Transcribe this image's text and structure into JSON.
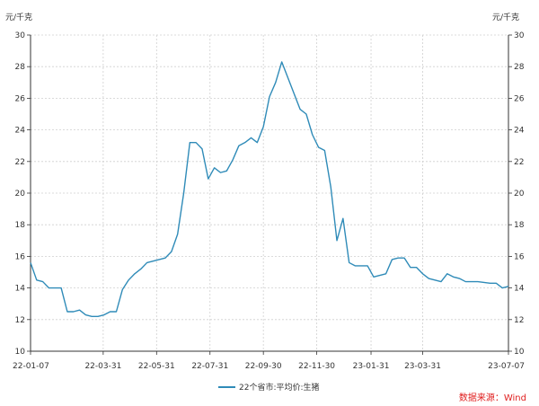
{
  "chart_data": {
    "type": "line",
    "title": "",
    "y_unit_left": "元/千克",
    "y_unit_right": "元/千克",
    "ylim": [
      10,
      30
    ],
    "yticks": [
      10,
      12,
      14,
      16,
      18,
      20,
      22,
      24,
      26,
      28,
      30
    ],
    "grid": true,
    "x_range": [
      "22-01-07",
      "23-07-07"
    ],
    "xtick_labels": [
      "22-01-07",
      "22-03-31",
      "22-05-31",
      "22-07-31",
      "22-09-30",
      "22-11-30",
      "23-01-31",
      "23-03-31",
      "23-07-07"
    ],
    "legend_position": "bottom-center",
    "series": [
      {
        "name": "22个省市:平均价:生猪",
        "color": "#2f8bb8",
        "points": [
          [
            "22-01-07",
            15.6
          ],
          [
            "22-01-14",
            14.5
          ],
          [
            "22-01-21",
            14.4
          ],
          [
            "22-01-28",
            14.0
          ],
          [
            "22-02-04",
            14.0
          ],
          [
            "22-02-11",
            14.0
          ],
          [
            "22-02-18",
            12.5
          ],
          [
            "22-02-25",
            12.5
          ],
          [
            "22-03-04",
            12.6
          ],
          [
            "22-03-11",
            12.3
          ],
          [
            "22-03-18",
            12.2
          ],
          [
            "22-03-25",
            12.2
          ],
          [
            "22-04-01",
            12.3
          ],
          [
            "22-04-08",
            12.5
          ],
          [
            "22-04-15",
            12.5
          ],
          [
            "22-04-22",
            13.9
          ],
          [
            "22-04-29",
            14.5
          ],
          [
            "22-05-06",
            14.9
          ],
          [
            "22-05-13",
            15.2
          ],
          [
            "22-05-20",
            15.6
          ],
          [
            "22-05-27",
            15.7
          ],
          [
            "22-06-03",
            15.8
          ],
          [
            "22-06-10",
            15.9
          ],
          [
            "22-06-17",
            16.3
          ],
          [
            "22-06-24",
            17.4
          ],
          [
            "22-07-01",
            20.0
          ],
          [
            "22-07-08",
            23.2
          ],
          [
            "22-07-15",
            23.2
          ],
          [
            "22-07-22",
            22.8
          ],
          [
            "22-07-29",
            20.9
          ],
          [
            "22-08-05",
            21.6
          ],
          [
            "22-08-12",
            21.3
          ],
          [
            "22-08-19",
            21.4
          ],
          [
            "22-08-26",
            22.1
          ],
          [
            "22-09-02",
            23.0
          ],
          [
            "22-09-09",
            23.2
          ],
          [
            "22-09-16",
            23.5
          ],
          [
            "22-09-23",
            23.2
          ],
          [
            "22-09-30",
            24.2
          ],
          [
            "22-10-07",
            26.1
          ],
          [
            "22-10-14",
            27.0
          ],
          [
            "22-10-21",
            28.3
          ],
          [
            "22-10-28",
            27.3
          ],
          [
            "22-11-04",
            26.3
          ],
          [
            "22-11-11",
            25.3
          ],
          [
            "22-11-18",
            25.0
          ],
          [
            "22-11-25",
            23.7
          ],
          [
            "22-12-02",
            22.9
          ],
          [
            "22-12-09",
            22.7
          ],
          [
            "22-12-16",
            20.4
          ],
          [
            "22-12-23",
            17.0
          ],
          [
            "22-12-30",
            18.4
          ],
          [
            "23-01-06",
            15.6
          ],
          [
            "23-01-13",
            15.4
          ],
          [
            "23-01-20",
            15.4
          ],
          [
            "23-01-27",
            15.4
          ],
          [
            "23-02-03",
            14.7
          ],
          [
            "23-02-10",
            14.8
          ],
          [
            "23-02-17",
            14.9
          ],
          [
            "23-02-24",
            15.8
          ],
          [
            "23-03-03",
            15.9
          ],
          [
            "23-03-10",
            15.9
          ],
          [
            "23-03-17",
            15.3
          ],
          [
            "23-03-24",
            15.3
          ],
          [
            "23-03-31",
            14.9
          ],
          [
            "23-04-07",
            14.6
          ],
          [
            "23-04-14",
            14.5
          ],
          [
            "23-04-21",
            14.4
          ],
          [
            "23-04-28",
            14.9
          ],
          [
            "23-05-05",
            14.7
          ],
          [
            "23-05-12",
            14.6
          ],
          [
            "23-05-19",
            14.4
          ],
          [
            "23-05-26",
            14.4
          ],
          [
            "23-06-02",
            14.4
          ],
          [
            "23-06-09",
            14.35
          ],
          [
            "23-06-16",
            14.3
          ],
          [
            "23-06-23",
            14.3
          ],
          [
            "23-06-30",
            14.0
          ],
          [
            "23-07-07",
            14.1
          ]
        ]
      }
    ],
    "source": "数据来源：Wind",
    "source_color": "#e02020"
  }
}
